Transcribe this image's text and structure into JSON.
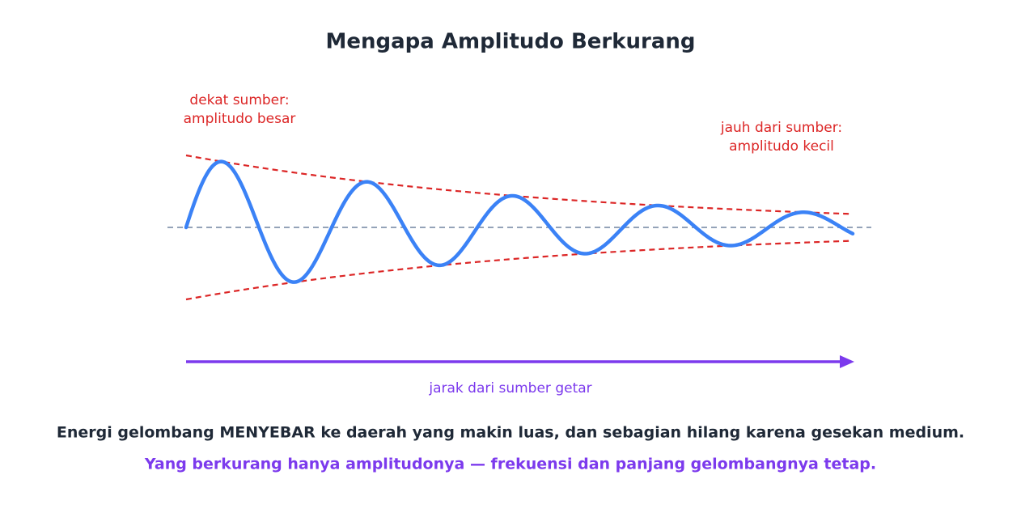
{
  "title": "Mengapa Amplitudo Berkurang",
  "near_label": [
    "dekat sumber:",
    "amplitudo besar"
  ],
  "far_label": [
    "jauh dari sumber:",
    "amplitudo kecil"
  ],
  "axis_label": "jarak dari sumber getar",
  "notes": [
    "Energi gelombang MENYEBAR ke daerah yang makin luas, dan sebagian hilang karena gesekan medium.",
    "Yang berkurang hanya amplitudonya — frekuensi dan panjang gelombangnya tetap."
  ]
}
